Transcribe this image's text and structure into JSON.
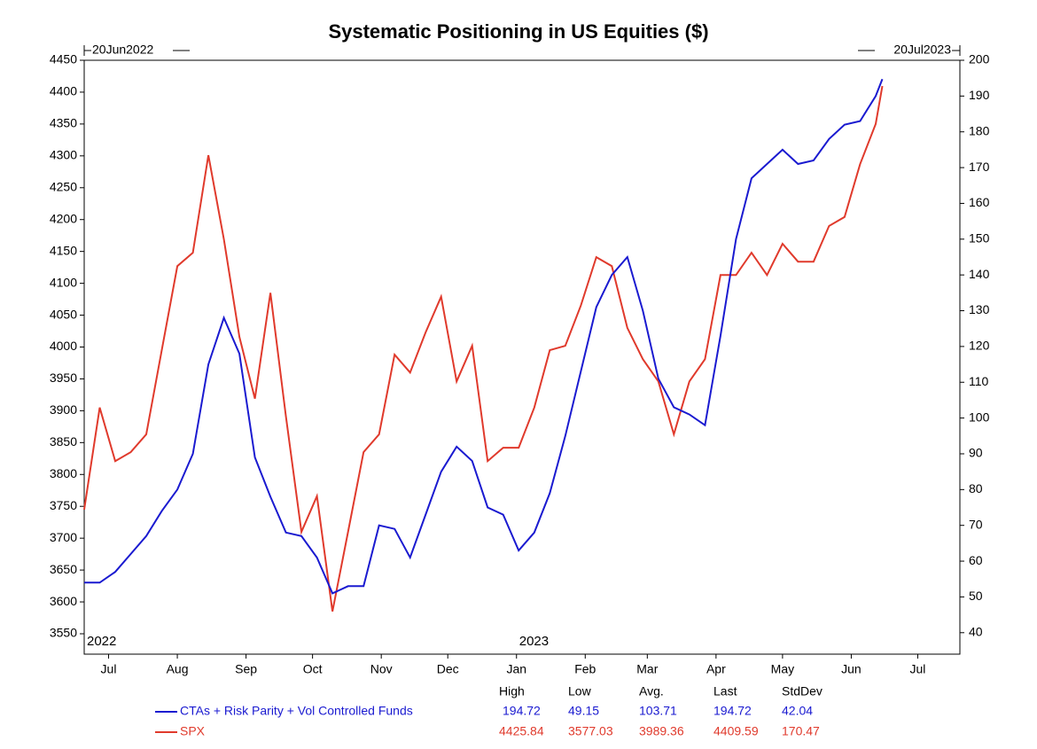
{
  "chart_data": {
    "type": "line",
    "title": "Systematic Positioning in US Equities ($)",
    "start_label": "20Jun2022",
    "end_label": "20Jul2023",
    "year_labels": [
      {
        "x": "2022-06-20",
        "label": "2022"
      },
      {
        "x": "2023-01-01",
        "label": "2023"
      }
    ],
    "xlim": [
      "2022-06-20",
      "2023-07-20"
    ],
    "xticks": [
      {
        "value": "2022-07-01",
        "label": "Jul"
      },
      {
        "value": "2022-08-01",
        "label": "Aug"
      },
      {
        "value": "2022-09-01",
        "label": "Sep"
      },
      {
        "value": "2022-10-01",
        "label": "Oct"
      },
      {
        "value": "2022-11-01",
        "label": "Nov"
      },
      {
        "value": "2022-12-01",
        "label": "Dec"
      },
      {
        "value": "2023-01-01",
        "label": "Jan"
      },
      {
        "value": "2023-02-01",
        "label": "Feb"
      },
      {
        "value": "2023-03-01",
        "label": "Mar"
      },
      {
        "value": "2023-04-01",
        "label": "Apr"
      },
      {
        "value": "2023-05-01",
        "label": "May"
      },
      {
        "value": "2023-06-01",
        "label": "Jun"
      },
      {
        "value": "2023-07-01",
        "label": "Jul"
      }
    ],
    "ylim": [
      3518,
      4450
    ],
    "yticks": [
      3550,
      3600,
      3650,
      3700,
      3750,
      3800,
      3850,
      3900,
      3950,
      4000,
      4050,
      4100,
      4150,
      4200,
      4250,
      4300,
      4350,
      4400,
      4450
    ],
    "y2lim": [
      34,
      200
    ],
    "y2ticks": [
      40,
      50,
      60,
      70,
      80,
      90,
      100,
      110,
      120,
      130,
      140,
      150,
      160,
      170,
      180,
      190,
      200
    ],
    "x": [
      "2022-06-20",
      "2022-06-27",
      "2022-07-04",
      "2022-07-11",
      "2022-07-18",
      "2022-07-25",
      "2022-08-01",
      "2022-08-08",
      "2022-08-15",
      "2022-08-22",
      "2022-08-29",
      "2022-09-05",
      "2022-09-12",
      "2022-09-19",
      "2022-09-26",
      "2022-10-03",
      "2022-10-10",
      "2022-10-17",
      "2022-10-24",
      "2022-10-31",
      "2022-11-07",
      "2022-11-14",
      "2022-11-21",
      "2022-11-28",
      "2022-12-05",
      "2022-12-12",
      "2022-12-19",
      "2022-12-26",
      "2023-01-02",
      "2023-01-09",
      "2023-01-16",
      "2023-01-23",
      "2023-01-30",
      "2023-02-06",
      "2023-02-13",
      "2023-02-20",
      "2023-02-27",
      "2023-03-06",
      "2023-03-13",
      "2023-03-20",
      "2023-03-27",
      "2023-04-03",
      "2023-04-10",
      "2023-04-17",
      "2023-04-24",
      "2023-05-01",
      "2023-05-08",
      "2023-05-15",
      "2023-05-22",
      "2023-05-29",
      "2023-06-05",
      "2023-06-12",
      "2023-06-15"
    ],
    "series": [
      {
        "name": "CTAs + Risk Parity + Vol Controlled Funds",
        "color": "#1a1ad0",
        "axis": "y2",
        "values": [
          54,
          54,
          57,
          62,
          67,
          74,
          80,
          90,
          115,
          128,
          118,
          89,
          78,
          68,
          67,
          61,
          51,
          53,
          53,
          70,
          69,
          61,
          73,
          85,
          92,
          88,
          75,
          73,
          63,
          68,
          79,
          95,
          113,
          131,
          140,
          145,
          130,
          111,
          103,
          101,
          98,
          123,
          150,
          167,
          171,
          175,
          171,
          172,
          178,
          182,
          183,
          190,
          194.72
        ],
        "stats": [
          194.72,
          49.15,
          103.71,
          194.72,
          42.04
        ]
      },
      {
        "name": "SPX",
        "color": "#e03a2c",
        "axis": "y",
        "values": [
          3745,
          3905,
          3821,
          3835,
          3863,
          3995,
          4127,
          4148,
          4301,
          4169,
          4016,
          3919,
          4085,
          3891,
          3710,
          3766,
          3585,
          3710,
          3835,
          3863,
          3988,
          3960,
          4023,
          4079,
          3946,
          4002,
          3821,
          3842,
          3842,
          3905,
          3995,
          4002,
          4065,
          4141,
          4127,
          4030,
          3981,
          3946,
          3863,
          3946,
          3981,
          4113,
          4113,
          4148,
          4113,
          4162,
          4134,
          4134,
          4190,
          4204,
          4287,
          4350,
          4409.59
        ],
        "stats": [
          4425.84,
          3577.03,
          3989.36,
          4409.59,
          170.47
        ]
      }
    ],
    "stats_headers": [
      "High",
      "Low",
      "Avg.",
      "Last",
      "StdDev"
    ]
  }
}
